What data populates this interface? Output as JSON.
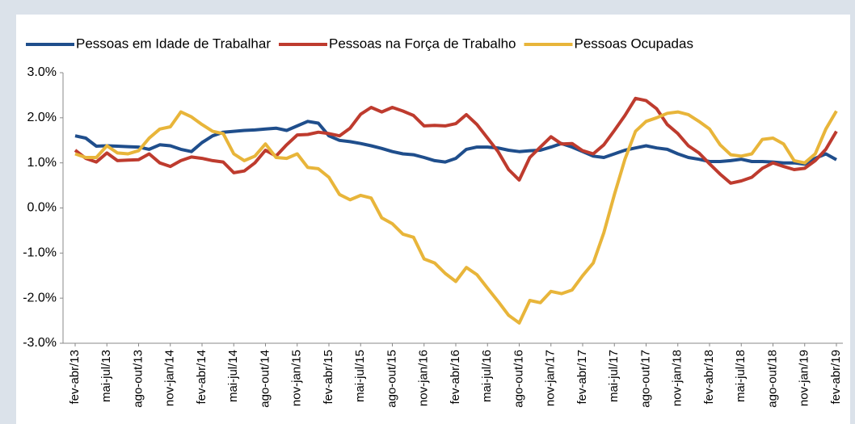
{
  "chart_data": {
    "type": "line",
    "categories": [
      "fev-abr/13",
      null,
      null,
      "mai-jul/13",
      null,
      null,
      "ago-out/13",
      null,
      null,
      "nov-jan/14",
      null,
      null,
      "fev-abr/14",
      null,
      null,
      "mai-jul/14",
      null,
      null,
      "ago-out/14",
      null,
      null,
      "nov-jan/15",
      null,
      null,
      "fev-abr/15",
      null,
      null,
      "mai-jul/15",
      null,
      null,
      "ago-out/15",
      null,
      null,
      "nov-jan/16",
      null,
      null,
      "fev-abr/16",
      null,
      null,
      "mai-jul/16",
      null,
      null,
      "ago-out/16",
      null,
      null,
      "nov-jan/17",
      null,
      null,
      "fev-abr/17",
      null,
      null,
      "mai-jul/17",
      null,
      null,
      "ago-out/17",
      null,
      null,
      "nov-jan/18",
      null,
      null,
      "fev-abr/18",
      null,
      null,
      "mai-jul/18",
      null,
      null,
      "ago-out/18",
      null,
      null,
      "nov-jan/19",
      null,
      null,
      "fev-abr/19"
    ],
    "series": [
      {
        "name": "Pessoas em Idade de Trabalhar",
        "color": "#1f4e8c",
        "values": [
          1.6,
          1.55,
          1.37,
          1.38,
          1.37,
          1.36,
          1.35,
          1.3,
          1.4,
          1.38,
          1.3,
          1.25,
          1.45,
          1.6,
          1.68,
          1.7,
          1.72,
          1.73,
          1.75,
          1.77,
          1.72,
          1.82,
          1.92,
          1.88,
          1.6,
          1.5,
          1.47,
          1.43,
          1.38,
          1.32,
          1.25,
          1.2,
          1.18,
          1.12,
          1.05,
          1.02,
          1.1,
          1.3,
          1.35,
          1.35,
          1.33,
          1.28,
          1.25,
          1.27,
          1.28,
          1.35,
          1.43,
          1.35,
          1.25,
          1.15,
          1.12,
          1.2,
          1.28,
          1.33,
          1.38,
          1.33,
          1.3,
          1.2,
          1.12,
          1.08,
          1.03,
          1.03,
          1.05,
          1.08,
          1.03,
          1.03,
          1.02,
          1.0,
          1.0,
          0.97,
          1.1,
          1.2,
          1.07
        ]
      },
      {
        "name": "Pessoas na Força de Trabalho",
        "color": "#be3b2e",
        "values": [
          1.28,
          1.1,
          1.02,
          1.22,
          1.05,
          1.06,
          1.07,
          1.2,
          1.0,
          0.92,
          1.05,
          1.13,
          1.1,
          1.05,
          1.02,
          0.78,
          0.82,
          1.0,
          1.28,
          1.15,
          1.4,
          1.62,
          1.63,
          1.68,
          1.65,
          1.6,
          1.77,
          2.08,
          2.23,
          2.13,
          2.23,
          2.15,
          2.05,
          1.82,
          1.83,
          1.82,
          1.87,
          2.07,
          1.85,
          1.55,
          1.25,
          0.85,
          0.62,
          1.12,
          1.35,
          1.58,
          1.42,
          1.43,
          1.27,
          1.2,
          1.4,
          1.72,
          2.05,
          2.43,
          2.38,
          2.2,
          1.85,
          1.65,
          1.38,
          1.22,
          0.98,
          0.75,
          0.55,
          0.6,
          0.68,
          0.88,
          1.0,
          0.92,
          0.85,
          0.88,
          1.05,
          1.3,
          1.7
        ]
      },
      {
        "name": "Pessoas Ocupadas",
        "color": "#e8b53a",
        "values": [
          1.2,
          1.12,
          1.12,
          1.38,
          1.22,
          1.2,
          1.27,
          1.55,
          1.75,
          1.8,
          2.13,
          2.02,
          1.85,
          1.7,
          1.65,
          1.2,
          1.05,
          1.15,
          1.42,
          1.12,
          1.1,
          1.2,
          0.9,
          0.87,
          0.68,
          0.3,
          0.18,
          0.28,
          0.22,
          -0.22,
          -0.35,
          -0.58,
          -0.65,
          -1.13,
          -1.22,
          -1.45,
          -1.63,
          -1.32,
          -1.48,
          -1.78,
          -2.07,
          -2.38,
          -2.55,
          -2.05,
          -2.1,
          -1.85,
          -1.9,
          -1.82,
          -1.5,
          -1.22,
          -0.55,
          0.3,
          1.08,
          1.7,
          1.92,
          2.0,
          2.1,
          2.13,
          2.07,
          1.92,
          1.75,
          1.4,
          1.18,
          1.15,
          1.2,
          1.52,
          1.55,
          1.42,
          1.05,
          1.0,
          1.2,
          1.75,
          2.15
        ]
      }
    ],
    "ylim": [
      -3,
      3
    ],
    "yticks": [
      {
        "value": -3,
        "label": "-3.0%"
      },
      {
        "value": -2,
        "label": "-2.0%"
      },
      {
        "value": -1,
        "label": "-1.0%"
      },
      {
        "value": 0,
        "label": "0.0%"
      },
      {
        "value": 1,
        "label": "1.0%"
      },
      {
        "value": 2,
        "label": "2.0%"
      },
      {
        "value": 3,
        "label": "3.0%"
      }
    ],
    "grid": false,
    "legend": "top"
  }
}
